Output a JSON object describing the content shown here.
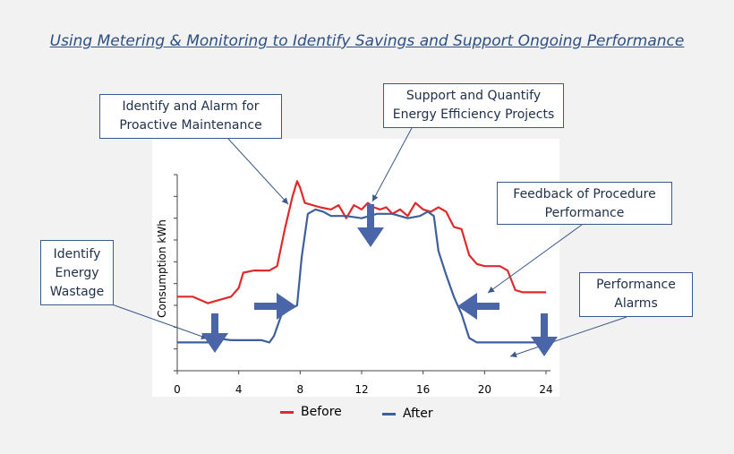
{
  "title": "Using Metering & Monitoring to Identify Savings and Support Ongoing Performance",
  "callouts": {
    "maintenance": "Identify and Alarm for Proactive Maintenance",
    "projects": "Support and Quantify Energy Efficiency Projects",
    "feedback": "Feedback of Procedure Performance",
    "wastage": "Identify Energy Wastage",
    "alarms": "Performance Alarms"
  },
  "colors": {
    "before": "#dd2b2b",
    "after": "#3d5f9c",
    "arrow": "#4a65a8"
  },
  "chart_data": {
    "type": "line",
    "ylabel": "Consumption kWh",
    "xlim": [
      0,
      24
    ],
    "x_ticks": [
      0,
      4,
      8,
      12,
      16,
      20,
      24
    ],
    "series": [
      {
        "name": "Before",
        "points": [
          [
            0,
            3.4
          ],
          [
            1,
            3.4
          ],
          [
            2,
            3.1
          ],
          [
            3,
            3.3
          ],
          [
            3.5,
            3.4
          ],
          [
            4,
            3.8
          ],
          [
            4.3,
            4.5
          ],
          [
            5,
            4.6
          ],
          [
            6,
            4.6
          ],
          [
            6.5,
            4.8
          ],
          [
            7,
            6.5
          ],
          [
            7.5,
            8.0
          ],
          [
            7.8,
            8.7
          ],
          [
            8,
            8.4
          ],
          [
            8.3,
            7.7
          ],
          [
            8.8,
            7.6
          ],
          [
            9.3,
            7.5
          ],
          [
            10,
            7.4
          ],
          [
            10.5,
            7.6
          ],
          [
            11,
            7.0
          ],
          [
            11.5,
            7.6
          ],
          [
            12,
            7.4
          ],
          [
            12.4,
            7.7
          ],
          [
            12.8,
            7.5
          ],
          [
            13.2,
            7.4
          ],
          [
            13.6,
            7.5
          ],
          [
            14,
            7.2
          ],
          [
            14.5,
            7.4
          ],
          [
            15,
            7.1
          ],
          [
            15.5,
            7.7
          ],
          [
            16,
            7.4
          ],
          [
            16.5,
            7.3
          ],
          [
            17,
            7.5
          ],
          [
            17.5,
            7.3
          ],
          [
            18,
            6.6
          ],
          [
            18.5,
            6.5
          ],
          [
            19,
            5.3
          ],
          [
            19.5,
            4.9
          ],
          [
            20,
            4.8
          ],
          [
            21,
            4.8
          ],
          [
            21.5,
            4.6
          ],
          [
            22,
            3.7
          ],
          [
            22.5,
            3.6
          ],
          [
            24,
            3.6
          ]
        ]
      },
      {
        "name": "After",
        "points": [
          [
            0,
            1.3
          ],
          [
            2,
            1.3
          ],
          [
            2.5,
            1.5
          ],
          [
            3.5,
            1.4
          ],
          [
            5.5,
            1.4
          ],
          [
            6,
            1.3
          ],
          [
            6.3,
            1.6
          ],
          [
            6.8,
            2.6
          ],
          [
            7.3,
            2.8
          ],
          [
            7.8,
            3.0
          ],
          [
            8.1,
            5.2
          ],
          [
            8.5,
            7.2
          ],
          [
            9,
            7.4
          ],
          [
            9.5,
            7.3
          ],
          [
            10,
            7.1
          ],
          [
            11,
            7.1
          ],
          [
            12,
            7.0
          ],
          [
            12.5,
            7.1
          ],
          [
            13,
            7.2
          ],
          [
            14,
            7.2
          ],
          [
            15,
            7.0
          ],
          [
            15.8,
            7.1
          ],
          [
            16.3,
            7.3
          ],
          [
            16.7,
            7.1
          ],
          [
            17,
            5.5
          ],
          [
            17.5,
            4.4
          ],
          [
            18,
            3.4
          ],
          [
            18.5,
            2.6
          ],
          [
            19,
            1.5
          ],
          [
            19.5,
            1.3
          ],
          [
            22,
            1.3
          ],
          [
            24,
            1.3
          ]
        ]
      }
    ]
  }
}
